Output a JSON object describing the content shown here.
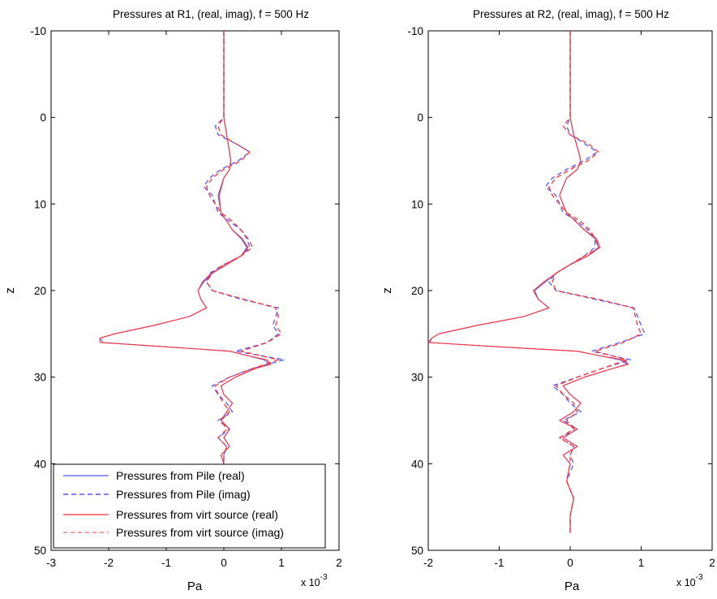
{
  "chart_data": [
    {
      "type": "line",
      "title": "Pressures at R1, (real, imag), f = 500 Hz",
      "xlabel": "Pa",
      "ylabel": "z",
      "x_exponent_label": "x 10",
      "x_exponent_power": "-3",
      "xlim": [
        -3,
        2
      ],
      "ylim": [
        -10,
        50
      ],
      "y_reversed": true,
      "xticks": [
        "-3",
        "-2",
        "-1",
        "0",
        "1",
        "2"
      ],
      "yticks": [
        "-10",
        "0",
        "10",
        "20",
        "30",
        "40",
        "50"
      ],
      "legend": {
        "placement": "bottom-left",
        "entries": [
          {
            "text": "Pressures from Pile (real)",
            "color": "#5555ff",
            "style": "solid"
          },
          {
            "text": "Pressures from Pile (imag)",
            "color": "#5555ff",
            "style": "dashed"
          },
          {
            "text": "Pressures from virt source (real)",
            "color": "#ff3333",
            "style": "solid"
          },
          {
            "text": "Pressures from virt source (imag)",
            "color": "#ff3333",
            "style": "dashed"
          }
        ]
      },
      "series": [
        {
          "color": "#5555ff",
          "style": "solid",
          "z": [
            -10,
            -5,
            -1,
            0,
            2,
            4,
            5,
            6,
            7,
            9,
            11,
            13,
            14,
            15,
            16,
            17,
            18,
            19,
            20,
            21,
            22,
            23,
            24,
            25,
            25.5,
            26,
            26.5,
            27,
            27.5,
            28,
            28.5,
            29,
            30,
            31,
            32,
            33,
            34,
            35,
            36,
            37,
            38,
            39,
            40
          ],
          "p": [
            0.0,
            0.0,
            0.0,
            0.0,
            0.05,
            0.1,
            0.12,
            0.1,
            0.0,
            -0.1,
            -0.05,
            0.15,
            0.3,
            0.4,
            0.3,
            0.05,
            -0.2,
            -0.35,
            -0.45,
            -0.4,
            -0.3,
            -0.6,
            -1.2,
            -1.9,
            -2.15,
            -2.1,
            -1.0,
            0.1,
            0.4,
            0.7,
            0.8,
            0.55,
            0.2,
            -0.05,
            0.0,
            0.15,
            0.05,
            -0.05,
            0.1,
            0.0,
            0.1,
            -0.05,
            0.0
          ]
        },
        {
          "color": "#5555ff",
          "style": "dashed",
          "z": [
            -10,
            -5,
            -1,
            0,
            1,
            2,
            3,
            4,
            5,
            6,
            7,
            8,
            9,
            11,
            12,
            13,
            14,
            15,
            16,
            17,
            18,
            19,
            20,
            21,
            22,
            23,
            24,
            25,
            26,
            27,
            28,
            29,
            30,
            31,
            32,
            33,
            34,
            35,
            36,
            37,
            38,
            39,
            40
          ],
          "p": [
            0.0,
            0.0,
            0.0,
            0.0,
            -0.15,
            -0.1,
            0.2,
            0.45,
            0.25,
            -0.05,
            -0.25,
            -0.35,
            -0.2,
            -0.1,
            0.1,
            0.3,
            0.4,
            0.45,
            0.3,
            0.0,
            -0.25,
            -0.3,
            -0.2,
            0.3,
            0.95,
            0.9,
            0.85,
            0.95,
            0.75,
            0.2,
            1.05,
            0.5,
            0.1,
            -0.2,
            -0.1,
            0.05,
            0.15,
            -0.1,
            0.1,
            -0.1,
            0.05,
            0.0,
            0.0
          ]
        },
        {
          "color": "#ff3333",
          "style": "solid",
          "z": [
            -10,
            -5,
            -1,
            0,
            2,
            4,
            5,
            6,
            7,
            9,
            11,
            13,
            14,
            15,
            16,
            17,
            18,
            19,
            20,
            21,
            22,
            23,
            24,
            25,
            25.5,
            26,
            26.5,
            27,
            27.5,
            28,
            28.5,
            29,
            30,
            31,
            32,
            33,
            34,
            35,
            36,
            37,
            38,
            39,
            40
          ],
          "p": [
            0.0,
            0.0,
            0.0,
            0.0,
            0.05,
            0.1,
            0.12,
            0.1,
            0.0,
            -0.08,
            -0.05,
            0.15,
            0.32,
            0.42,
            0.3,
            0.05,
            -0.22,
            -0.37,
            -0.45,
            -0.4,
            -0.3,
            -0.6,
            -1.2,
            -1.9,
            -2.15,
            -2.15,
            -1.0,
            0.1,
            0.4,
            0.75,
            0.82,
            0.55,
            0.2,
            -0.05,
            0.0,
            0.15,
            0.05,
            -0.05,
            0.1,
            0.0,
            0.1,
            -0.05,
            0.0
          ]
        },
        {
          "color": "#ff3333",
          "style": "dashed",
          "z": [
            -10,
            -5,
            -1,
            0,
            1,
            2,
            3,
            4,
            5,
            6,
            7,
            8,
            9,
            11,
            12,
            13,
            14,
            15,
            16,
            17,
            18,
            19,
            20,
            21,
            22,
            23,
            24,
            25,
            26,
            27,
            28,
            29,
            30,
            31,
            32,
            33,
            34,
            35,
            36,
            37,
            38,
            39,
            40
          ],
          "p": [
            0.0,
            0.0,
            0.0,
            0.0,
            -0.1,
            -0.05,
            0.2,
            0.45,
            0.3,
            0.0,
            -0.2,
            -0.3,
            -0.25,
            -0.05,
            0.15,
            0.3,
            0.42,
            0.5,
            0.3,
            0.0,
            -0.2,
            -0.3,
            -0.2,
            0.35,
            0.9,
            0.95,
            0.9,
            1.0,
            0.75,
            0.3,
            0.95,
            0.5,
            0.1,
            -0.15,
            -0.1,
            0.0,
            0.1,
            -0.05,
            0.05,
            -0.1,
            0.05,
            0.0,
            0.0
          ]
        }
      ]
    },
    {
      "type": "line",
      "title": "Pressures at R2, (real, imag), f = 500 Hz",
      "xlabel": "Pa",
      "ylabel": "z",
      "x_exponent_label": "x 10",
      "x_exponent_power": "-3",
      "xlim": [
        -2,
        2
      ],
      "ylim": [
        -10,
        50
      ],
      "y_reversed": true,
      "xticks": [
        "-2",
        "-1",
        "0",
        "1",
        "2"
      ],
      "yticks": [
        "-10",
        "0",
        "10",
        "20",
        "30",
        "40",
        "50"
      ],
      "series": [
        {
          "color": "#5555ff",
          "style": "solid",
          "z": [
            -10,
            -5,
            -1,
            0,
            2,
            4,
            5,
            6,
            7,
            9,
            11,
            13,
            14,
            15,
            16,
            17,
            18,
            19,
            20,
            21,
            22,
            23,
            24,
            25,
            25.5,
            26,
            26.5,
            27,
            27.5,
            28,
            28.5,
            29,
            30,
            31,
            32,
            33,
            34,
            35,
            36,
            37,
            38,
            39,
            40,
            42,
            44,
            46,
            48
          ],
          "p": [
            0.0,
            0.0,
            0.0,
            0.0,
            0.05,
            0.12,
            0.15,
            0.1,
            -0.05,
            -0.15,
            -0.05,
            0.2,
            0.35,
            0.4,
            0.25,
            0.0,
            -0.2,
            -0.35,
            -0.5,
            -0.45,
            -0.3,
            -0.65,
            -1.3,
            -1.85,
            -1.95,
            -1.98,
            -1.0,
            0.1,
            0.4,
            0.7,
            0.8,
            0.6,
            0.2,
            -0.1,
            0.0,
            0.15,
            0.05,
            -0.15,
            0.1,
            -0.1,
            0.1,
            -0.1,
            0.0,
            -0.05,
            0.05,
            0.0,
            0.0
          ]
        },
        {
          "color": "#5555ff",
          "style": "dashed",
          "z": [
            -10,
            -5,
            -1,
            0,
            1,
            2,
            3,
            4,
            5,
            6,
            7,
            8,
            9,
            11,
            12,
            13,
            14,
            15,
            16,
            17,
            18,
            19,
            20,
            21,
            22,
            23,
            24,
            25,
            26,
            27,
            28,
            29,
            30,
            31,
            32,
            33,
            34,
            35,
            36,
            37,
            38,
            39,
            40,
            42,
            44,
            46,
            48
          ],
          "p": [
            0.0,
            0.0,
            0.0,
            0.0,
            -0.05,
            0.0,
            0.2,
            0.38,
            0.2,
            -0.05,
            -0.25,
            -0.35,
            -0.2,
            -0.1,
            0.1,
            0.25,
            0.35,
            0.35,
            0.2,
            0.0,
            -0.2,
            -0.3,
            -0.2,
            0.35,
            0.9,
            0.95,
            1.0,
            1.05,
            0.7,
            0.3,
            0.85,
            0.45,
            0.1,
            -0.25,
            -0.1,
            0.0,
            0.15,
            -0.1,
            0.1,
            -0.15,
            0.05,
            0.0,
            0.05,
            -0.05,
            0.05,
            0.0,
            0.0
          ]
        },
        {
          "color": "#ff3333",
          "style": "solid",
          "z": [
            -10,
            -5,
            -1,
            0,
            2,
            4,
            5,
            6,
            7,
            9,
            11,
            13,
            14,
            15,
            16,
            17,
            18,
            19,
            20,
            21,
            22,
            23,
            24,
            25,
            25.5,
            26,
            26.5,
            27,
            27.5,
            28,
            28.5,
            29,
            30,
            31,
            32,
            33,
            34,
            35,
            36,
            37,
            38,
            39,
            40,
            42,
            44,
            46,
            48
          ],
          "p": [
            0.0,
            0.0,
            0.0,
            0.0,
            0.05,
            0.12,
            0.15,
            0.1,
            -0.05,
            -0.15,
            -0.05,
            0.2,
            0.37,
            0.42,
            0.25,
            0.0,
            -0.2,
            -0.37,
            -0.52,
            -0.45,
            -0.3,
            -0.65,
            -1.3,
            -1.85,
            -1.95,
            -2.0,
            -1.0,
            0.1,
            0.4,
            0.75,
            0.82,
            0.6,
            0.2,
            -0.1,
            0.0,
            0.15,
            0.05,
            -0.15,
            0.1,
            -0.1,
            0.1,
            -0.1,
            0.0,
            -0.05,
            0.05,
            0.0,
            0.0
          ]
        },
        {
          "color": "#ff3333",
          "style": "dashed",
          "z": [
            -10,
            -5,
            -1,
            0,
            1,
            2,
            3,
            4,
            5,
            6,
            7,
            8,
            9,
            11,
            12,
            13,
            14,
            15,
            16,
            17,
            18,
            19,
            20,
            21,
            22,
            23,
            24,
            25,
            26,
            27,
            28,
            29,
            30,
            31,
            32,
            33,
            34,
            35,
            36,
            37,
            38,
            39,
            40,
            42,
            44,
            46,
            48
          ],
          "p": [
            0.0,
            0.0,
            0.0,
            0.0,
            -0.1,
            0.0,
            0.25,
            0.4,
            0.25,
            0.0,
            -0.2,
            -0.3,
            -0.25,
            -0.05,
            0.15,
            0.28,
            0.35,
            0.42,
            0.2,
            0.0,
            -0.2,
            -0.25,
            -0.2,
            0.4,
            0.88,
            0.92,
            0.95,
            1.0,
            0.75,
            0.35,
            0.8,
            0.45,
            0.1,
            -0.2,
            -0.1,
            0.05,
            0.1,
            -0.05,
            0.05,
            -0.15,
            0.05,
            0.0,
            0.0,
            -0.05,
            0.05,
            0.0,
            0.0
          ]
        }
      ]
    }
  ]
}
